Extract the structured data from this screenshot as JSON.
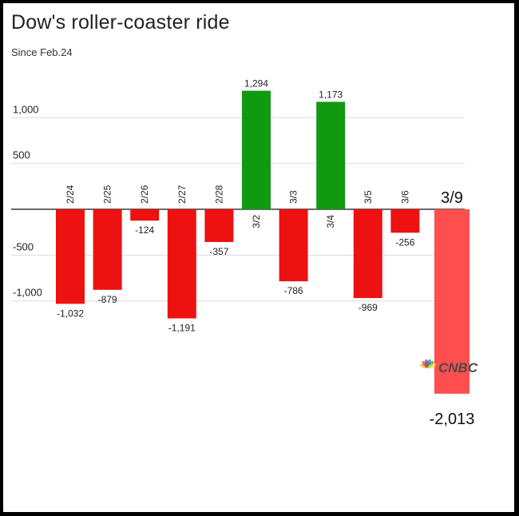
{
  "chart_data": {
    "type": "bar",
    "title": "Dow's roller-coaster ride",
    "subtitle": "Since Feb.24",
    "categories": [
      "2/24",
      "2/25",
      "2/26",
      "2/27",
      "2/28",
      "3/2",
      "3/3",
      "3/4",
      "3/5",
      "3/6",
      "3/9"
    ],
    "values": [
      -1032,
      -879,
      -124,
      -1191,
      -357,
      1294,
      -786,
      1173,
      -969,
      -256,
      -2013
    ],
    "value_labels": [
      "-1,032",
      "-879",
      "-124",
      "-1,191",
      "-357",
      "1,294",
      "-786",
      "1,173",
      "-969",
      "-256",
      "-2,013"
    ],
    "yticks": [
      1000,
      500,
      -500,
      -1000
    ],
    "ytick_labels": [
      "1,000",
      "500",
      "-500",
      "-1,000"
    ],
    "ylim": [
      -2300,
      1500
    ],
    "grid": true,
    "colors": {
      "negative": "#ee1111",
      "positive": "#119911",
      "highlight": "#ff4e4e"
    },
    "highlight_category": "3/9"
  },
  "watermark": {
    "text": "CNBC"
  }
}
